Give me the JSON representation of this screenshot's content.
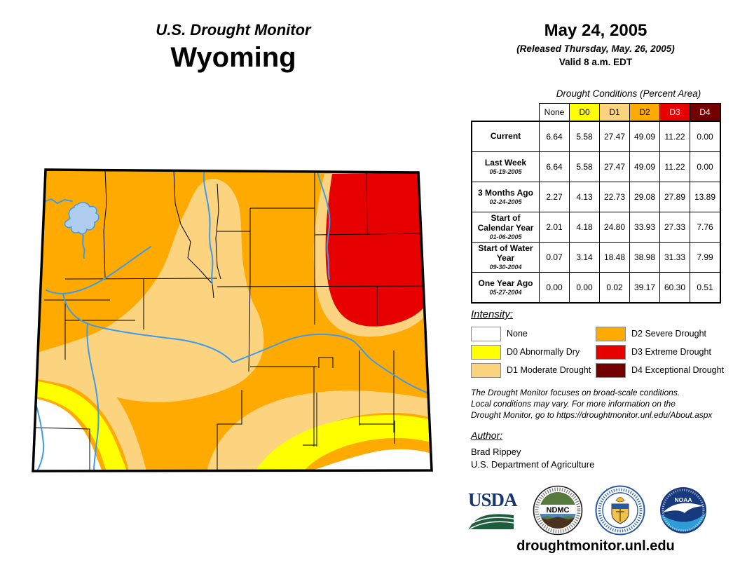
{
  "header": {
    "supertitle": "U.S. Drought Monitor",
    "state": "Wyoming"
  },
  "date_block": {
    "date": "May 24, 2005",
    "released": "(Released Thursday, May. 26, 2005)",
    "valid": "Valid 8 a.m. EDT"
  },
  "table": {
    "title": "Drought Conditions (Percent Area)",
    "columns": [
      "None",
      "D0",
      "D1",
      "D2",
      "D3",
      "D4"
    ],
    "column_colors": [
      "#FFFFFF",
      "#FFFF00",
      "#FCD37F",
      "#FFAA00",
      "#E60000",
      "#730000"
    ],
    "column_text_colors": [
      "#000000",
      "#000000",
      "#000000",
      "#000000",
      "#FFFFFF",
      "#FFFFFF"
    ],
    "rows": [
      {
        "label": "Current",
        "date": "",
        "values": [
          "6.64",
          "5.58",
          "27.47",
          "49.09",
          "11.22",
          "0.00"
        ]
      },
      {
        "label": "Last Week",
        "date": "05-19-2005",
        "values": [
          "6.64",
          "5.58",
          "27.47",
          "49.09",
          "11.22",
          "0.00"
        ]
      },
      {
        "label": "3 Months Ago",
        "date": "02-24-2005",
        "values": [
          "2.27",
          "4.13",
          "22.73",
          "29.08",
          "27.89",
          "13.89"
        ]
      },
      {
        "label": "Start of Calendar Year",
        "date": "01-06-2005",
        "values": [
          "2.01",
          "4.18",
          "24.80",
          "33.93",
          "27.33",
          "7.76"
        ]
      },
      {
        "label": "Start of Water Year",
        "date": "09-30-2004",
        "values": [
          "0.07",
          "3.14",
          "18.48",
          "38.98",
          "31.33",
          "7.99"
        ]
      },
      {
        "label": "One Year Ago",
        "date": "05-27-2004",
        "values": [
          "0.00",
          "0.00",
          "0.02",
          "39.17",
          "60.30",
          "0.51"
        ]
      }
    ]
  },
  "legend": {
    "title": "Intensity:",
    "items": [
      {
        "label": "None",
        "color": "#FFFFFF"
      },
      {
        "label": "D0 Abnormally Dry",
        "color": "#FFFF00"
      },
      {
        "label": "D1 Moderate Drought",
        "color": "#FCD37F"
      },
      {
        "label": "D2 Severe Drought",
        "color": "#FFAA00"
      },
      {
        "label": "D3 Extreme Drought",
        "color": "#E60000"
      },
      {
        "label": "D4 Exceptional Drought",
        "color": "#730000"
      }
    ]
  },
  "disclaimer_lines": [
    "The Drought Monitor focuses on broad-scale conditions.",
    "Local conditions may vary. For more information on the",
    "Drought Monitor, go to https://droughtmonitor.unl.edu/About.aspx"
  ],
  "author": {
    "title": "Author:",
    "name": "Brad Rippey",
    "org": "U.S. Department of Agriculture"
  },
  "logos": {
    "usda": "USDA",
    "ndmc": "NDMC",
    "noaa": "NOAA"
  },
  "footer": {
    "url": "droughtmonitor.unl.edu"
  },
  "colors": {
    "none": "#FFFFFF",
    "d0": "#FFFF00",
    "d1": "#FCD37F",
    "d2": "#FFAA00",
    "d3": "#E60000",
    "d4": "#730000",
    "river": "#3E9BEA",
    "lake": "#AECDEF"
  }
}
